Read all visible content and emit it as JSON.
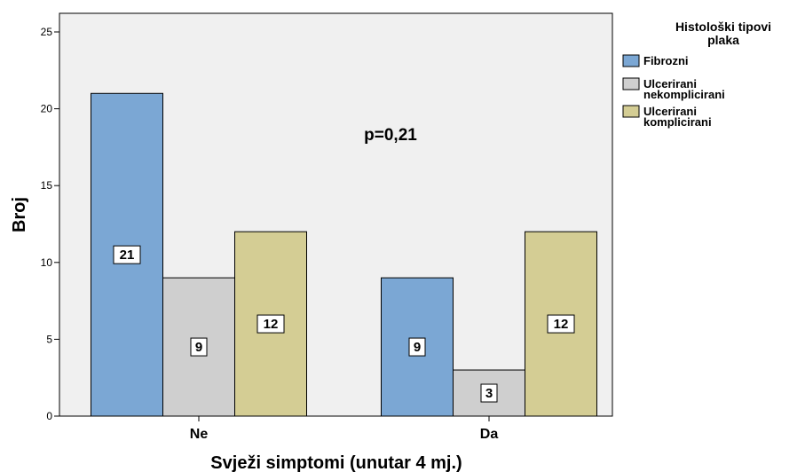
{
  "chart_data": {
    "type": "bar",
    "categories": [
      "Ne",
      "Da"
    ],
    "series": [
      {
        "name": "Fibrozni",
        "values": [
          21,
          9
        ],
        "color": "#7ba7d4"
      },
      {
        "name": "Ulcerirani nekomplicirani",
        "legend_lines": [
          "Ulcerirani",
          "nekomplicirani"
        ],
        "values": [
          9,
          3
        ],
        "color": "#cfcfcf"
      },
      {
        "name": "Ulcerirani komplicirani",
        "legend_lines": [
          "Ulcerirani",
          "komplicirani"
        ],
        "values": [
          12,
          12
        ],
        "color": "#d4cd94"
      }
    ],
    "title": "",
    "xlabel": "Svježi simptomi (unutar 4 mj.)",
    "ylabel": "Broj",
    "ylim": [
      0,
      25
    ],
    "yticks": [
      0,
      5,
      10,
      15,
      20,
      25
    ],
    "legend_title_lines": [
      "Histološki tipovi",
      "plaka"
    ],
    "legend_position": "right",
    "annotation": "p=0,21",
    "plot_background": "#f0f0f0",
    "grid": false
  }
}
